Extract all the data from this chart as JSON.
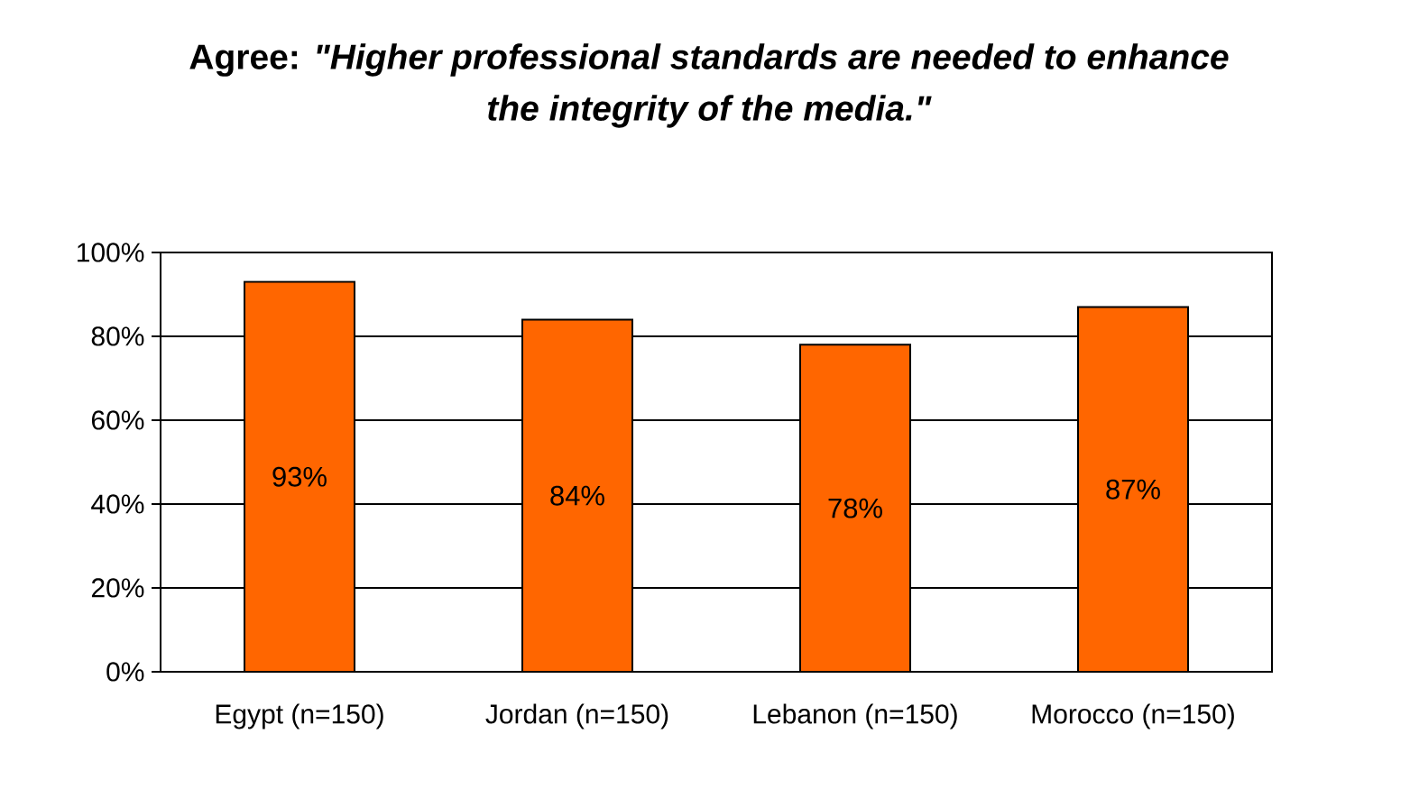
{
  "chart_data": {
    "type": "bar",
    "title": "Agree: *\"Higher professional standards are needed to enhance the integrity of the media.\"*",
    "categories": [
      "Egypt (n=150)",
      "Jordan (n=150)",
      "Lebanon (n=150)",
      "Morocco (n=150)"
    ],
    "values": [
      93,
      84,
      78,
      87
    ],
    "color": "#ff6600",
    "value_labels": [
      "93%",
      "84%",
      "78%",
      "87%"
    ],
    "ylim": [
      0,
      100
    ],
    "yticks": [
      {
        "value": 0,
        "label": "0%"
      },
      {
        "value": 20,
        "label": "20%"
      },
      {
        "value": 40,
        "label": "40%"
      },
      {
        "value": 60,
        "label": "60%"
      },
      {
        "value": 80,
        "label": "80%"
      },
      {
        "value": 100,
        "label": "100%"
      }
    ],
    "grid": "y"
  }
}
